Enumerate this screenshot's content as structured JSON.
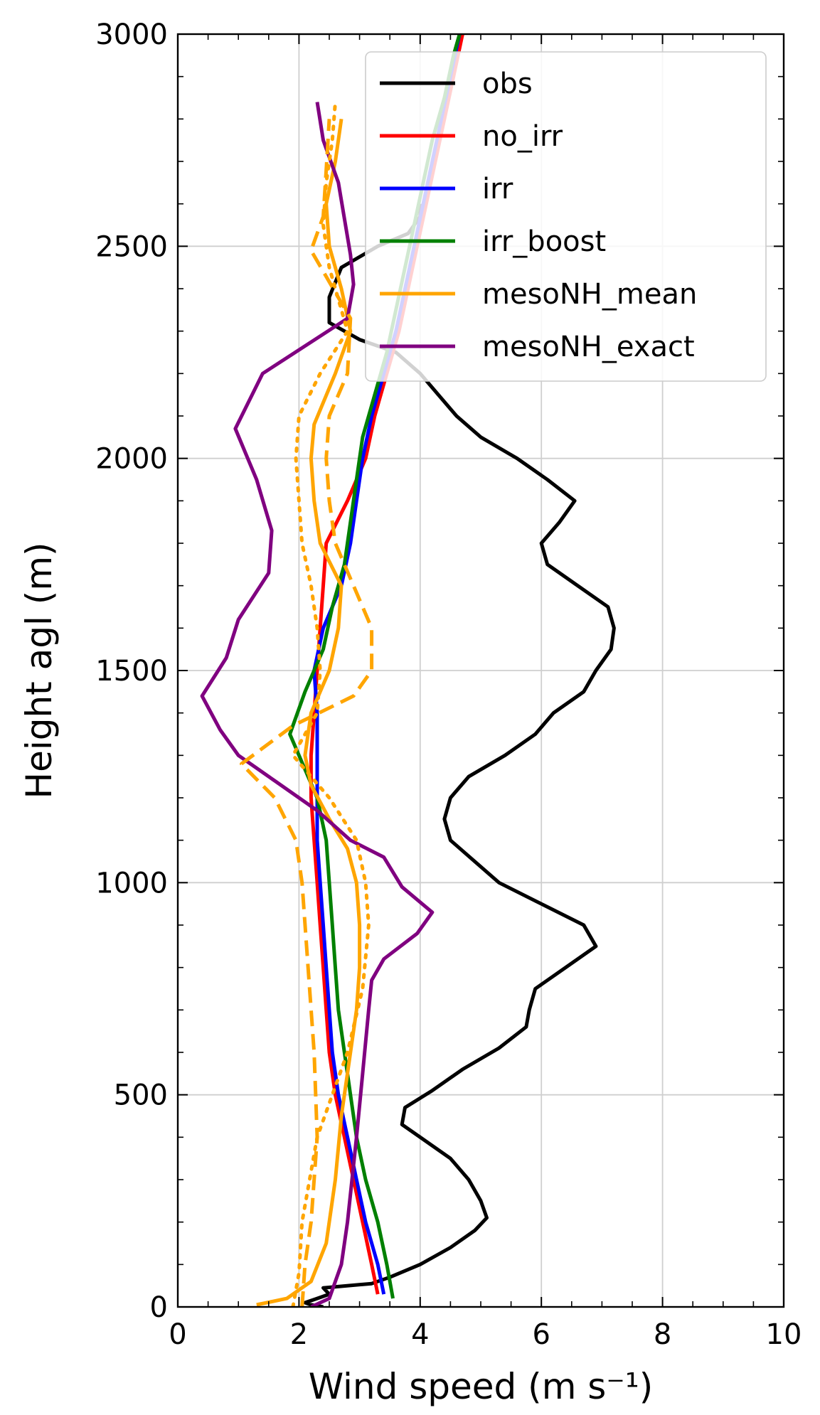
{
  "chart_data": {
    "type": "line",
    "title": "",
    "xlabel": "Wind speed (m s⁻¹)",
    "ylabel": "Height agl (m)",
    "xlim": [
      0,
      10
    ],
    "ylim": [
      0,
      3000
    ],
    "xticks": [
      0,
      2,
      4,
      6,
      8,
      10
    ],
    "yticks": [
      0,
      500,
      1000,
      1500,
      2000,
      2500,
      3000
    ],
    "grid": true,
    "legend_position": "top-right",
    "series": [
      {
        "name": "obs",
        "color": "#000000",
        "style": "solid",
        "points": [
          [
            2.4,
            0
          ],
          [
            2.2,
            5
          ],
          [
            2.1,
            10
          ],
          [
            2.3,
            20
          ],
          [
            2.5,
            30
          ],
          [
            2.4,
            45
          ],
          [
            3.2,
            55
          ],
          [
            3.5,
            70
          ],
          [
            4.0,
            100
          ],
          [
            4.5,
            140
          ],
          [
            4.9,
            180
          ],
          [
            5.1,
            210
          ],
          [
            5.0,
            250
          ],
          [
            4.8,
            300
          ],
          [
            4.5,
            350
          ],
          [
            4.0,
            400
          ],
          [
            3.7,
            430
          ],
          [
            3.75,
            470
          ],
          [
            4.2,
            510
          ],
          [
            4.7,
            560
          ],
          [
            5.3,
            610
          ],
          [
            5.75,
            660
          ],
          [
            5.8,
            700
          ],
          [
            5.9,
            750
          ],
          [
            6.4,
            800
          ],
          [
            6.9,
            850
          ],
          [
            6.7,
            900
          ],
          [
            6.0,
            950
          ],
          [
            5.3,
            1000
          ],
          [
            4.9,
            1050
          ],
          [
            4.5,
            1100
          ],
          [
            4.4,
            1150
          ],
          [
            4.5,
            1200
          ],
          [
            4.8,
            1250
          ],
          [
            5.4,
            1300
          ],
          [
            5.9,
            1350
          ],
          [
            6.2,
            1400
          ],
          [
            6.7,
            1450
          ],
          [
            6.9,
            1500
          ],
          [
            7.15,
            1550
          ],
          [
            7.2,
            1600
          ],
          [
            7.1,
            1650
          ],
          [
            6.6,
            1700
          ],
          [
            6.1,
            1750
          ],
          [
            6.0,
            1800
          ],
          [
            6.3,
            1850
          ],
          [
            6.55,
            1900
          ],
          [
            6.1,
            1950
          ],
          [
            5.6,
            2000
          ],
          [
            5.0,
            2050
          ],
          [
            4.6,
            2100
          ],
          [
            4.3,
            2150
          ],
          [
            4.0,
            2200
          ],
          [
            3.6,
            2250
          ],
          [
            3.0,
            2280
          ],
          [
            2.5,
            2320
          ],
          [
            2.5,
            2380
          ],
          [
            2.7,
            2450
          ],
          [
            3.3,
            2500
          ],
          [
            3.8,
            2530
          ],
          [
            4.0,
            2570
          ],
          [
            4.0,
            2600
          ]
        ]
      },
      {
        "name": "no_irr",
        "color": "#ff0000",
        "style": "solid",
        "points": [
          [
            3.3,
            30
          ],
          [
            3.2,
            100
          ],
          [
            3.05,
            200
          ],
          [
            2.9,
            300
          ],
          [
            2.75,
            400
          ],
          [
            2.6,
            500
          ],
          [
            2.5,
            600
          ],
          [
            2.45,
            700
          ],
          [
            2.4,
            800
          ],
          [
            2.35,
            900
          ],
          [
            2.3,
            1000
          ],
          [
            2.25,
            1100
          ],
          [
            2.2,
            1200
          ],
          [
            2.2,
            1300
          ],
          [
            2.25,
            1400
          ],
          [
            2.3,
            1500
          ],
          [
            2.35,
            1600
          ],
          [
            2.4,
            1700
          ],
          [
            2.45,
            1800
          ],
          [
            2.8,
            1900
          ],
          [
            3.1,
            2000
          ],
          [
            3.25,
            2100
          ],
          [
            3.45,
            2200
          ],
          [
            3.65,
            2300
          ],
          [
            3.8,
            2400
          ],
          [
            3.95,
            2500
          ],
          [
            4.1,
            2600
          ],
          [
            4.25,
            2700
          ],
          [
            4.4,
            2800
          ],
          [
            4.55,
            2900
          ],
          [
            4.7,
            3000
          ]
        ]
      },
      {
        "name": "irr",
        "color": "#0000ff",
        "style": "solid",
        "points": [
          [
            3.4,
            30
          ],
          [
            3.3,
            100
          ],
          [
            3.1,
            200
          ],
          [
            2.95,
            300
          ],
          [
            2.8,
            400
          ],
          [
            2.65,
            500
          ],
          [
            2.55,
            600
          ],
          [
            2.5,
            700
          ],
          [
            2.45,
            800
          ],
          [
            2.4,
            900
          ],
          [
            2.35,
            1000
          ],
          [
            2.3,
            1100
          ],
          [
            2.3,
            1200
          ],
          [
            2.3,
            1300
          ],
          [
            2.3,
            1400
          ],
          [
            2.25,
            1500
          ],
          [
            2.4,
            1600
          ],
          [
            2.7,
            1700
          ],
          [
            2.85,
            1800
          ],
          [
            2.95,
            1900
          ],
          [
            3.05,
            2000
          ],
          [
            3.2,
            2100
          ],
          [
            3.4,
            2200
          ],
          [
            3.6,
            2300
          ],
          [
            3.75,
            2400
          ],
          [
            3.9,
            2500
          ],
          [
            4.05,
            2600
          ],
          [
            4.2,
            2700
          ],
          [
            4.35,
            2800
          ],
          [
            4.5,
            2900
          ],
          [
            4.65,
            3000
          ]
        ]
      },
      {
        "name": "irr_boost",
        "color": "#008000",
        "style": "solid",
        "points": [
          [
            3.55,
            20
          ],
          [
            3.45,
            100
          ],
          [
            3.3,
            200
          ],
          [
            3.1,
            300
          ],
          [
            2.95,
            400
          ],
          [
            2.85,
            500
          ],
          [
            2.75,
            600
          ],
          [
            2.65,
            700
          ],
          [
            2.6,
            800
          ],
          [
            2.55,
            900
          ],
          [
            2.5,
            1000
          ],
          [
            2.45,
            1100
          ],
          [
            2.3,
            1200
          ],
          [
            2.0,
            1300
          ],
          [
            1.85,
            1350
          ],
          [
            2.1,
            1450
          ],
          [
            2.4,
            1550
          ],
          [
            2.55,
            1650
          ],
          [
            2.75,
            1750
          ],
          [
            2.85,
            1850
          ],
          [
            2.95,
            1950
          ],
          [
            3.05,
            2050
          ],
          [
            3.25,
            2150
          ],
          [
            3.45,
            2250
          ],
          [
            3.6,
            2350
          ],
          [
            3.75,
            2450
          ],
          [
            3.9,
            2550
          ],
          [
            4.05,
            2650
          ],
          [
            4.2,
            2750
          ],
          [
            4.4,
            2850
          ],
          [
            4.55,
            2950
          ],
          [
            4.65,
            3000
          ]
        ]
      },
      {
        "name": "mesoNH_mean",
        "color": "#ffa500",
        "style": "solid",
        "points": [
          [
            1.3,
            5
          ],
          [
            1.8,
            20
          ],
          [
            2.2,
            60
          ],
          [
            2.45,
            150
          ],
          [
            2.6,
            300
          ],
          [
            2.7,
            450
          ],
          [
            2.85,
            600
          ],
          [
            2.95,
            700
          ],
          [
            3.0,
            800
          ],
          [
            3.0,
            900
          ],
          [
            2.95,
            1000
          ],
          [
            2.8,
            1080
          ],
          [
            2.5,
            1150
          ],
          [
            2.2,
            1230
          ],
          [
            2.1,
            1300
          ],
          [
            2.2,
            1400
          ],
          [
            2.5,
            1500
          ],
          [
            2.65,
            1600
          ],
          [
            2.7,
            1700
          ],
          [
            2.35,
            1800
          ],
          [
            2.25,
            1900
          ],
          [
            2.2,
            2000
          ],
          [
            2.25,
            2080
          ],
          [
            2.6,
            2200
          ],
          [
            2.85,
            2300
          ],
          [
            2.7,
            2400
          ],
          [
            2.5,
            2500
          ],
          [
            2.45,
            2600
          ],
          [
            2.6,
            2700
          ],
          [
            2.7,
            2800
          ]
        ]
      },
      {
        "name": "mesoNH_exact",
        "color": "#800080",
        "style": "solid",
        "points": [
          [
            2.2,
            0
          ],
          [
            2.5,
            20
          ],
          [
            2.7,
            100
          ],
          [
            2.8,
            200
          ],
          [
            2.95,
            400
          ],
          [
            3.05,
            550
          ],
          [
            3.15,
            700
          ],
          [
            3.2,
            770
          ],
          [
            3.4,
            820
          ],
          [
            3.95,
            880
          ],
          [
            4.2,
            930
          ],
          [
            3.7,
            990
          ],
          [
            3.4,
            1060
          ],
          [
            2.85,
            1100
          ],
          [
            2.3,
            1170
          ],
          [
            1.6,
            1240
          ],
          [
            1.0,
            1300
          ],
          [
            0.7,
            1360
          ],
          [
            0.4,
            1440
          ],
          [
            0.8,
            1530
          ],
          [
            1.0,
            1620
          ],
          [
            1.5,
            1730
          ],
          [
            1.55,
            1830
          ],
          [
            1.3,
            1950
          ],
          [
            0.95,
            2070
          ],
          [
            1.4,
            2200
          ],
          [
            2.8,
            2330
          ],
          [
            2.9,
            2410
          ],
          [
            2.85,
            2480
          ],
          [
            2.65,
            2650
          ],
          [
            2.4,
            2750
          ],
          [
            2.3,
            2840
          ]
        ]
      },
      {
        "name": "",
        "color": "#ffa500",
        "style": "dashed",
        "points": [
          [
            2.05,
            0
          ],
          [
            2.1,
            100
          ],
          [
            2.2,
            200
          ],
          [
            2.3,
            400
          ],
          [
            2.25,
            600
          ],
          [
            2.15,
            800
          ],
          [
            2.05,
            1000
          ],
          [
            1.95,
            1100
          ],
          [
            1.6,
            1200
          ],
          [
            1.05,
            1280
          ],
          [
            1.9,
            1370
          ],
          [
            2.9,
            1440
          ],
          [
            3.2,
            1500
          ],
          [
            3.2,
            1600
          ],
          [
            2.9,
            1700
          ],
          [
            2.6,
            1800
          ],
          [
            2.5,
            1900
          ],
          [
            2.45,
            2000
          ],
          [
            2.5,
            2100
          ],
          [
            2.8,
            2200
          ],
          [
            2.85,
            2330
          ],
          [
            2.2,
            2490
          ],
          [
            2.4,
            2570
          ],
          [
            2.45,
            2680
          ],
          [
            2.5,
            2800
          ]
        ]
      },
      {
        "name": "",
        "color": "#ffa500",
        "style": "dotted",
        "points": [
          [
            1.9,
            0
          ],
          [
            2.0,
            80
          ],
          [
            2.05,
            200
          ],
          [
            2.3,
            400
          ],
          [
            2.8,
            600
          ],
          [
            3.05,
            750
          ],
          [
            3.15,
            900
          ],
          [
            3.1,
            1000
          ],
          [
            2.95,
            1100
          ],
          [
            2.5,
            1200
          ],
          [
            1.9,
            1300
          ],
          [
            2.3,
            1400
          ],
          [
            2.35,
            1500
          ],
          [
            2.3,
            1600
          ],
          [
            2.2,
            1700
          ],
          [
            2.05,
            1800
          ],
          [
            2.0,
            1900
          ],
          [
            1.95,
            2000
          ],
          [
            2.0,
            2100
          ],
          [
            2.35,
            2200
          ],
          [
            2.8,
            2300
          ],
          [
            2.5,
            2450
          ],
          [
            2.4,
            2550
          ],
          [
            2.45,
            2650
          ],
          [
            2.55,
            2750
          ],
          [
            2.6,
            2840
          ]
        ]
      }
    ]
  }
}
